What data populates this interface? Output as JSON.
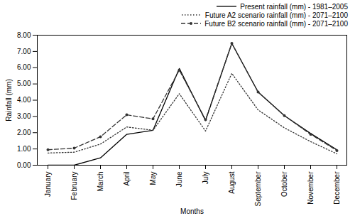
{
  "chart_data": {
    "type": "line",
    "categories": [
      "January",
      "February",
      "March",
      "April",
      "May",
      "June",
      "July",
      "August",
      "September",
      "October",
      "November",
      "December"
    ],
    "series": [
      {
        "name": "Present rainfall (mm) - 1981–2005",
        "color": "#000000",
        "line_style": "solid",
        "values": [
          0,
          0,
          0.45,
          1.9,
          2.15,
          5.95,
          2.75,
          7.5,
          4.5,
          3.05,
          1.95,
          0.95
        ]
      },
      {
        "name": "Future A2 scenario rainfall (mm) - 2071–2100",
        "color": "#333333",
        "line_style": "dotted",
        "values": [
          0.75,
          0.8,
          1.3,
          2.35,
          2.15,
          4.4,
          2.1,
          5.65,
          3.4,
          2.3,
          1.45,
          0.7
        ]
      },
      {
        "name": "Future B2 scenario rainfall (mm) - 2071–2100",
        "color": "#333333",
        "line_style": "dashed",
        "marker": "circle",
        "values": [
          0.95,
          1.05,
          1.75,
          3.1,
          2.85,
          5.85,
          2.8,
          7.5,
          4.5,
          3.05,
          1.9,
          0.9
        ]
      }
    ],
    "xlabel": "Months",
    "ylabel": "Rainfall (mm)",
    "ylim": [
      0,
      8
    ],
    "yticks": [
      {
        "value": 0,
        "label": "0.00"
      },
      {
        "value": 1,
        "label": "1.00"
      },
      {
        "value": 2,
        "label": "2.00"
      },
      {
        "value": 3,
        "label": "3.00"
      },
      {
        "value": 4,
        "label": "4.00"
      },
      {
        "value": 5,
        "label": "5.00"
      },
      {
        "value": 6,
        "label": "6.00"
      },
      {
        "value": 7,
        "label": "7.00"
      },
      {
        "value": 8,
        "label": "8.00"
      }
    ],
    "grid": false,
    "legend": "top-right"
  }
}
